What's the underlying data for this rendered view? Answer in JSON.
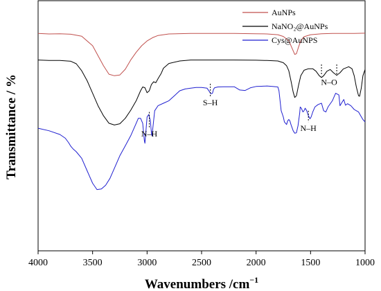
{
  "chart_data": {
    "type": "line",
    "xlabel": "Wavenumbers /cm",
    "xlabel_sup": "−1",
    "ylabel": "Transmittance / %",
    "xlim": [
      4000,
      1000
    ],
    "x_ticks": [
      "4000",
      "3500",
      "3000",
      "2500",
      "2000",
      "1500",
      "1000"
    ],
    "y_ticks_shown": false,
    "grid": false,
    "legend_position": "top-right",
    "series": [
      {
        "name": "AuNPs",
        "color": "#c0504d",
        "points": [
          [
            4000,
            0.869
          ],
          [
            3900,
            0.867
          ],
          [
            3800,
            0.868
          ],
          [
            3700,
            0.866
          ],
          [
            3600,
            0.858
          ],
          [
            3500,
            0.82
          ],
          [
            3450,
            0.78
          ],
          [
            3400,
            0.74
          ],
          [
            3350,
            0.706
          ],
          [
            3300,
            0.7
          ],
          [
            3250,
            0.703
          ],
          [
            3200,
            0.726
          ],
          [
            3150,
            0.763
          ],
          [
            3100,
            0.794
          ],
          [
            3050,
            0.82
          ],
          [
            3000,
            0.839
          ],
          [
            2950,
            0.852
          ],
          [
            2900,
            0.861
          ],
          [
            2800,
            0.867
          ],
          [
            2600,
            0.869
          ],
          [
            2400,
            0.869
          ],
          [
            2200,
            0.869
          ],
          [
            2000,
            0.868
          ],
          [
            1900,
            0.867
          ],
          [
            1800,
            0.864
          ],
          [
            1750,
            0.857
          ],
          [
            1700,
            0.84
          ],
          [
            1670,
            0.81
          ],
          [
            1645,
            0.785
          ],
          [
            1630,
            0.788
          ],
          [
            1610,
            0.815
          ],
          [
            1590,
            0.84
          ],
          [
            1560,
            0.856
          ],
          [
            1500,
            0.864
          ],
          [
            1400,
            0.868
          ],
          [
            1300,
            0.869
          ],
          [
            1200,
            0.869
          ],
          [
            1100,
            0.869
          ],
          [
            1000,
            0.87
          ]
        ]
      },
      {
        "name": "NaNO₂@AuNPs",
        "color": "#000000",
        "points": [
          [
            4000,
            0.763
          ],
          [
            3900,
            0.761
          ],
          [
            3800,
            0.761
          ],
          [
            3700,
            0.758
          ],
          [
            3650,
            0.748
          ],
          [
            3600,
            0.72
          ],
          [
            3550,
            0.68
          ],
          [
            3500,
            0.63
          ],
          [
            3450,
            0.58
          ],
          [
            3400,
            0.54
          ],
          [
            3350,
            0.51
          ],
          [
            3300,
            0.503
          ],
          [
            3250,
            0.508
          ],
          [
            3200,
            0.53
          ],
          [
            3150,
            0.562
          ],
          [
            3100,
            0.6
          ],
          [
            3060,
            0.64
          ],
          [
            3040,
            0.655
          ],
          [
            3020,
            0.652
          ],
          [
            3000,
            0.632
          ],
          [
            2980,
            0.64
          ],
          [
            2960,
            0.665
          ],
          [
            2940,
            0.676
          ],
          [
            2920,
            0.672
          ],
          [
            2900,
            0.688
          ],
          [
            2870,
            0.71
          ],
          [
            2850,
            0.73
          ],
          [
            2800,
            0.749
          ],
          [
            2700,
            0.759
          ],
          [
            2600,
            0.763
          ],
          [
            2400,
            0.763
          ],
          [
            2200,
            0.763
          ],
          [
            2000,
            0.762
          ],
          [
            1900,
            0.761
          ],
          [
            1800,
            0.759
          ],
          [
            1750,
            0.752
          ],
          [
            1720,
            0.74
          ],
          [
            1700,
            0.72
          ],
          [
            1680,
            0.68
          ],
          [
            1660,
            0.635
          ],
          [
            1645,
            0.613
          ],
          [
            1630,
            0.62
          ],
          [
            1610,
            0.662
          ],
          [
            1590,
            0.7
          ],
          [
            1560,
            0.722
          ],
          [
            1520,
            0.728
          ],
          [
            1480,
            0.728
          ],
          [
            1450,
            0.718
          ],
          [
            1420,
            0.7
          ],
          [
            1400,
            0.693
          ],
          [
            1380,
            0.7
          ],
          [
            1350,
            0.718
          ],
          [
            1320,
            0.725
          ],
          [
            1290,
            0.712
          ],
          [
            1260,
            0.702
          ],
          [
            1230,
            0.712
          ],
          [
            1200,
            0.727
          ],
          [
            1150,
            0.736
          ],
          [
            1120,
            0.728
          ],
          [
            1100,
            0.7
          ],
          [
            1080,
            0.655
          ],
          [
            1060,
            0.62
          ],
          [
            1050,
            0.618
          ],
          [
            1035,
            0.65
          ],
          [
            1020,
            0.7
          ],
          [
            1000,
            0.725
          ]
        ]
      },
      {
        "name": "Cys@AuNPS",
        "color": "#1f1fd0",
        "points": [
          [
            4000,
            0.49
          ],
          [
            3900,
            0.48
          ],
          [
            3800,
            0.465
          ],
          [
            3750,
            0.45
          ],
          [
            3720,
            0.432
          ],
          [
            3700,
            0.418
          ],
          [
            3680,
            0.408
          ],
          [
            3650,
            0.396
          ],
          [
            3600,
            0.37
          ],
          [
            3550,
            0.32
          ],
          [
            3500,
            0.27
          ],
          [
            3460,
            0.245
          ],
          [
            3420,
            0.247
          ],
          [
            3380,
            0.262
          ],
          [
            3340,
            0.29
          ],
          [
            3300,
            0.33
          ],
          [
            3250,
            0.38
          ],
          [
            3200,
            0.42
          ],
          [
            3150,
            0.46
          ],
          [
            3100,
            0.51
          ],
          [
            3080,
            0.53
          ],
          [
            3060,
            0.53
          ],
          [
            3040,
            0.51
          ],
          [
            3025,
            0.44
          ],
          [
            3020,
            0.43
          ],
          [
            3012,
            0.47
          ],
          [
            3000,
            0.535
          ],
          [
            2985,
            0.545
          ],
          [
            2970,
            0.52
          ],
          [
            2960,
            0.47
          ],
          [
            2955,
            0.46
          ],
          [
            2945,
            0.5
          ],
          [
            2930,
            0.56
          ],
          [
            2900,
            0.58
          ],
          [
            2850,
            0.59
          ],
          [
            2800,
            0.6
          ],
          [
            2750,
            0.62
          ],
          [
            2700,
            0.64
          ],
          [
            2650,
            0.647
          ],
          [
            2600,
            0.65
          ],
          [
            2550,
            0.653
          ],
          [
            2500,
            0.653
          ],
          [
            2450,
            0.65
          ],
          [
            2430,
            0.638
          ],
          [
            2415,
            0.628
          ],
          [
            2400,
            0.63
          ],
          [
            2390,
            0.646
          ],
          [
            2380,
            0.652
          ],
          [
            2350,
            0.655
          ],
          [
            2300,
            0.656
          ],
          [
            2200,
            0.656
          ],
          [
            2150,
            0.643
          ],
          [
            2100,
            0.641
          ],
          [
            2050,
            0.652
          ],
          [
            2000,
            0.657
          ],
          [
            1950,
            0.658
          ],
          [
            1900,
            0.659
          ],
          [
            1850,
            0.657
          ],
          [
            1800,
            0.655
          ],
          [
            1790,
            0.64
          ],
          [
            1780,
            0.6
          ],
          [
            1770,
            0.56
          ],
          [
            1750,
            0.535
          ],
          [
            1740,
            0.515
          ],
          [
            1720,
            0.505
          ],
          [
            1710,
            0.52
          ],
          [
            1700,
            0.525
          ],
          [
            1690,
            0.52
          ],
          [
            1680,
            0.505
          ],
          [
            1660,
            0.48
          ],
          [
            1645,
            0.47
          ],
          [
            1630,
            0.472
          ],
          [
            1615,
            0.5
          ],
          [
            1600,
            0.55
          ],
          [
            1595,
            0.575
          ],
          [
            1585,
            0.57
          ],
          [
            1570,
            0.555
          ],
          [
            1560,
            0.56
          ],
          [
            1550,
            0.57
          ],
          [
            1535,
            0.56
          ],
          [
            1520,
            0.54
          ],
          [
            1505,
            0.528
          ],
          [
            1495,
            0.535
          ],
          [
            1480,
            0.555
          ],
          [
            1460,
            0.575
          ],
          [
            1430,
            0.585
          ],
          [
            1400,
            0.59
          ],
          [
            1380,
            0.56
          ],
          [
            1360,
            0.555
          ],
          [
            1340,
            0.575
          ],
          [
            1300,
            0.6
          ],
          [
            1270,
            0.63
          ],
          [
            1240,
            0.623
          ],
          [
            1230,
            0.58
          ],
          [
            1210,
            0.595
          ],
          [
            1195,
            0.605
          ],
          [
            1180,
            0.582
          ],
          [
            1160,
            0.588
          ],
          [
            1130,
            0.58
          ],
          [
            1100,
            0.565
          ],
          [
            1080,
            0.56
          ],
          [
            1060,
            0.555
          ],
          [
            1040,
            0.54
          ],
          [
            1020,
            0.525
          ],
          [
            1000,
            0.515
          ]
        ]
      }
    ],
    "annotations": [
      {
        "label": "N–H",
        "x": 2980,
        "y_top": 0.555,
        "y_bottom": 0.493,
        "series": "Cys@AuNPS"
      },
      {
        "label": "S–H",
        "x": 2420,
        "y_top": 0.668,
        "y_bottom": 0.618,
        "series": "Cys@AuNPS"
      },
      {
        "label": "N–H",
        "x": 1520,
        "y_top": 0.56,
        "y_bottom": 0.515,
        "series": "Cys@AuNPS"
      },
      {
        "label": "N–O",
        "x": 1400,
        "x2": 1260,
        "y_top": 0.745,
        "y_bottom": 0.7,
        "series": "NaNO₂@AuNPs"
      }
    ]
  }
}
